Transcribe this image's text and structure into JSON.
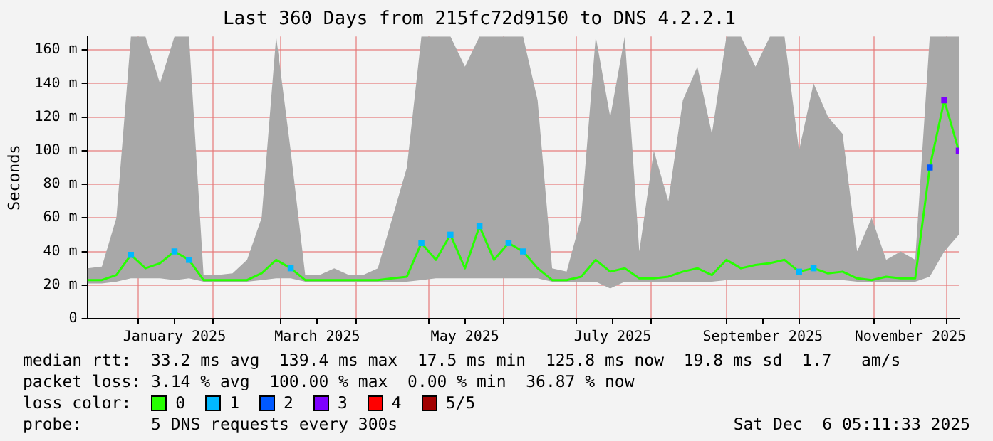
{
  "chart_data": {
    "type": "line",
    "title": "Last 360 Days from 215fc72d9150 to DNS 4.2.2.1",
    "ylabel": "Seconds",
    "x": [
      "2024-12-11",
      "2024-12-17",
      "2024-12-23",
      "2024-12-29",
      "2025-01-04",
      "2025-01-10",
      "2025-01-16",
      "2025-01-22",
      "2025-01-28",
      "2025-02-03",
      "2025-02-09",
      "2025-02-15",
      "2025-02-21",
      "2025-02-27",
      "2025-03-05",
      "2025-03-11",
      "2025-03-17",
      "2025-03-23",
      "2025-03-29",
      "2025-04-04",
      "2025-04-10",
      "2025-04-16",
      "2025-04-22",
      "2025-04-28",
      "2025-05-04",
      "2025-05-10",
      "2025-05-16",
      "2025-05-22",
      "2025-05-28",
      "2025-06-03",
      "2025-06-09",
      "2025-06-15",
      "2025-06-21",
      "2025-06-27",
      "2025-07-03",
      "2025-07-09",
      "2025-07-15",
      "2025-07-21",
      "2025-07-27",
      "2025-08-02",
      "2025-08-08",
      "2025-08-14",
      "2025-08-20",
      "2025-08-26",
      "2025-09-01",
      "2025-09-07",
      "2025-09-13",
      "2025-09-19",
      "2025-09-25",
      "2025-10-01",
      "2025-10-07",
      "2025-10-13",
      "2025-10-19",
      "2025-10-25",
      "2025-10-31",
      "2025-11-06",
      "2025-11-12",
      "2025-11-18",
      "2025-11-24",
      "2025-11-30",
      "2025-12-06"
    ],
    "series": [
      {
        "name": "0",
        "color": "#26ff00",
        "values": [
          23,
          23,
          26,
          38,
          30,
          33,
          40,
          35,
          23,
          23,
          23,
          23,
          27,
          35,
          30,
          23,
          23,
          23,
          23,
          23,
          23,
          24,
          25,
          45,
          35,
          50,
          30,
          55,
          35,
          45,
          40,
          30,
          23,
          23,
          25,
          35,
          28,
          30,
          24,
          24,
          25,
          28,
          30,
          26,
          35,
          30,
          32,
          33,
          35,
          28,
          30,
          27,
          28,
          24,
          23,
          25,
          24,
          24,
          90,
          130,
          100
        ],
        "lower": [
          21,
          21,
          22,
          24,
          24,
          24,
          23,
          24,
          22,
          22,
          22,
          22,
          23,
          24,
          24,
          22,
          22,
          22,
          22,
          22,
          22,
          22,
          22,
          23,
          24,
          24,
          24,
          24,
          24,
          24,
          24,
          24,
          22,
          22,
          22,
          22,
          18,
          22,
          22,
          22,
          22,
          22,
          22,
          22,
          23,
          23,
          23,
          23,
          23,
          23,
          23,
          23,
          23,
          22,
          22,
          22,
          22,
          22,
          25,
          40,
          50
        ],
        "upper": [
          30,
          31,
          60,
          168,
          168,
          140,
          168,
          168,
          26,
          26,
          27,
          35,
          60,
          168,
          100,
          26,
          26,
          30,
          26,
          26,
          30,
          60,
          90,
          168,
          168,
          168,
          150,
          168,
          168,
          168,
          168,
          130,
          30,
          28,
          60,
          168,
          120,
          168,
          40,
          100,
          70,
          130,
          150,
          110,
          168,
          168,
          150,
          168,
          168,
          100,
          140,
          120,
          110,
          40,
          60,
          35,
          40,
          35,
          168,
          168,
          168
        ]
      },
      {
        "name": "1",
        "type": "scatter",
        "marker": "square",
        "color": "#00b8ff",
        "x": [
          "2024-12-29",
          "2025-01-16",
          "2025-01-22",
          "2025-03-05",
          "2025-04-28",
          "2025-05-10",
          "2025-05-22",
          "2025-06-03",
          "2025-06-09",
          "2025-10-01",
          "2025-10-07"
        ],
        "values": [
          38,
          40,
          35,
          30,
          45,
          50,
          55,
          45,
          40,
          28,
          30
        ]
      },
      {
        "name": "2",
        "type": "scatter",
        "marker": "square",
        "color": "#0059ff",
        "x": [
          "2025-11-24"
        ],
        "values": [
          90
        ]
      },
      {
        "name": "3",
        "type": "scatter",
        "marker": "square",
        "color": "#7e00ff",
        "x": [
          "2025-11-30",
          "2025-12-06"
        ],
        "values": [
          130,
          100
        ]
      },
      {
        "name": "4",
        "color": "#ff0000",
        "values": [
          null,
          null,
          null,
          null,
          null,
          null,
          null,
          null,
          null,
          null,
          null,
          null,
          null,
          null,
          null,
          null,
          null,
          null,
          null,
          null,
          null,
          null,
          null,
          null,
          null,
          null,
          null,
          null,
          null,
          null,
          null,
          null,
          null,
          null,
          null,
          null,
          null,
          null,
          null,
          null,
          null,
          null,
          null,
          null,
          null,
          null,
          null,
          null,
          null,
          null,
          null,
          null,
          null,
          null,
          null,
          null,
          null,
          null,
          null,
          null,
          null
        ]
      },
      {
        "name": "5/5",
        "color": "#a10000",
        "values": [
          null,
          null,
          null,
          null,
          null,
          null,
          null,
          null,
          null,
          null,
          null,
          null,
          null,
          null,
          null,
          null,
          null,
          null,
          null,
          null,
          null,
          null,
          null,
          null,
          null,
          null,
          null,
          null,
          null,
          null,
          null,
          null,
          null,
          null,
          null,
          null,
          null,
          null,
          null,
          null,
          null,
          null,
          null,
          null,
          null,
          null,
          null,
          null,
          null,
          null,
          null,
          null,
          null,
          null,
          null,
          null,
          null,
          null,
          null,
          null,
          null
        ]
      }
    ],
    "xlim": [
      "2024-12-11",
      "2025-12-06"
    ],
    "xticks": [
      {
        "value": "2025-01-01",
        "label": null
      },
      {
        "value": "2025-01-16",
        "label": "January 2025"
      },
      {
        "value": "2025-02-01",
        "label": null
      },
      {
        "value": "2025-03-01",
        "label": null
      },
      {
        "value": "2025-03-16",
        "label": "March 2025"
      },
      {
        "value": "2025-04-01",
        "label": null
      },
      {
        "value": "2025-05-01",
        "label": null
      },
      {
        "value": "2025-05-16",
        "label": "May 2025"
      },
      {
        "value": "2025-06-01",
        "label": null
      },
      {
        "value": "2025-07-01",
        "label": null
      },
      {
        "value": "2025-07-16",
        "label": "July 2025"
      },
      {
        "value": "2025-08-01",
        "label": null
      },
      {
        "value": "2025-09-01",
        "label": null
      },
      {
        "value": "2025-09-16",
        "label": "September 2025"
      },
      {
        "value": "2025-10-01",
        "label": null
      },
      {
        "value": "2025-11-01",
        "label": null
      },
      {
        "value": "2025-11-16",
        "label": "November 2025"
      },
      {
        "value": "2025-12-01",
        "label": null
      }
    ],
    "ylim": [
      0,
      168
    ],
    "yticks": [
      0,
      {
        "value": 20,
        "label": "20 m"
      },
      {
        "value": 40,
        "label": "40 m"
      },
      {
        "value": 60,
        "label": "60 m"
      },
      {
        "value": 80,
        "label": "80 m"
      },
      {
        "value": 100,
        "label": "100 m"
      },
      {
        "value": 120,
        "label": "120 m"
      },
      {
        "value": 140,
        "label": "140 m"
      },
      {
        "value": 160,
        "label": "160 m"
      }
    ],
    "grid": true,
    "legend": "bottom",
    "legend_title": "loss color:",
    "annotations": [
      "median rtt:  33.2 ms avg  139.4 ms max  17.5 ms min  125.8 ms now  19.8 ms sd  1.7   am/s",
      "packet loss: 3.14 % avg  100.00 % max  0.00 % min  36.87 % now",
      "probe:       5 DNS requests every 300s",
      "Sat Dec  6 05:11:33 2025"
    ]
  }
}
